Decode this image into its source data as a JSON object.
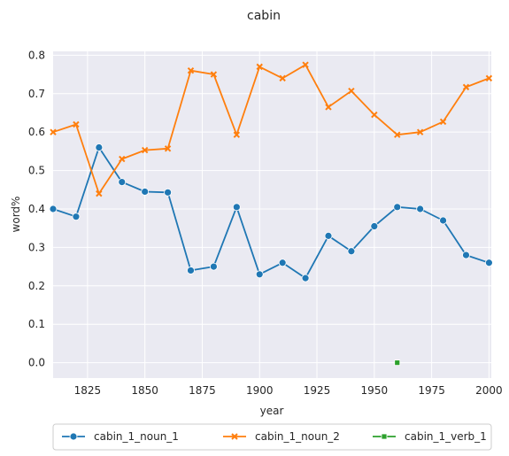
{
  "chart_data": {
    "type": "line",
    "title": "cabin",
    "xlabel": "year",
    "ylabel": "word%",
    "xlim": [
      1810,
      2001
    ],
    "ylim": [
      -0.04,
      0.81
    ],
    "xticks": [
      1825,
      1850,
      1875,
      1900,
      1925,
      1950,
      1975,
      2000
    ],
    "xtick_labels": [
      "1825",
      "1850",
      "1875",
      "1900",
      "1925",
      "1950",
      "1975",
      "2000"
    ],
    "yticks": [
      0.0,
      0.1,
      0.2,
      0.3,
      0.4,
      0.5,
      0.6,
      0.7,
      0.8
    ],
    "ytick_labels": [
      "0.0",
      "0.1",
      "0.2",
      "0.3",
      "0.4",
      "0.5",
      "0.6",
      "0.7",
      "0.8"
    ],
    "grid": true,
    "legend_position": "bottom",
    "series": [
      {
        "name": "cabin_1_noun_1",
        "color": "#1f77b4",
        "marker": "circle",
        "x": [
          1810,
          1820,
          1830,
          1840,
          1850,
          1860,
          1870,
          1880,
          1890,
          1900,
          1910,
          1920,
          1930,
          1940,
          1950,
          1960,
          1970,
          1980,
          1990,
          2000
        ],
        "y": [
          0.4,
          0.38,
          0.56,
          0.47,
          0.445,
          0.443,
          0.24,
          0.25,
          0.405,
          0.23,
          0.26,
          0.22,
          0.33,
          0.29,
          0.355,
          0.405,
          0.4,
          0.37,
          0.28,
          0.26
        ]
      },
      {
        "name": "cabin_1_noun_2",
        "color": "#ff7f0e",
        "marker": "x",
        "x": [
          1810,
          1820,
          1830,
          1840,
          1850,
          1860,
          1870,
          1880,
          1890,
          1900,
          1910,
          1920,
          1930,
          1940,
          1950,
          1960,
          1970,
          1980,
          1990,
          2000
        ],
        "y": [
          0.6,
          0.62,
          0.44,
          0.53,
          0.553,
          0.557,
          0.76,
          0.75,
          0.593,
          0.77,
          0.74,
          0.775,
          0.665,
          0.707,
          0.645,
          0.593,
          0.6,
          0.627,
          0.717,
          0.74
        ]
      },
      {
        "name": "cabin_1_verb_1",
        "color": "#2ca02c",
        "marker": "square",
        "x": [
          1960
        ],
        "y": [
          0.0
        ]
      }
    ]
  }
}
